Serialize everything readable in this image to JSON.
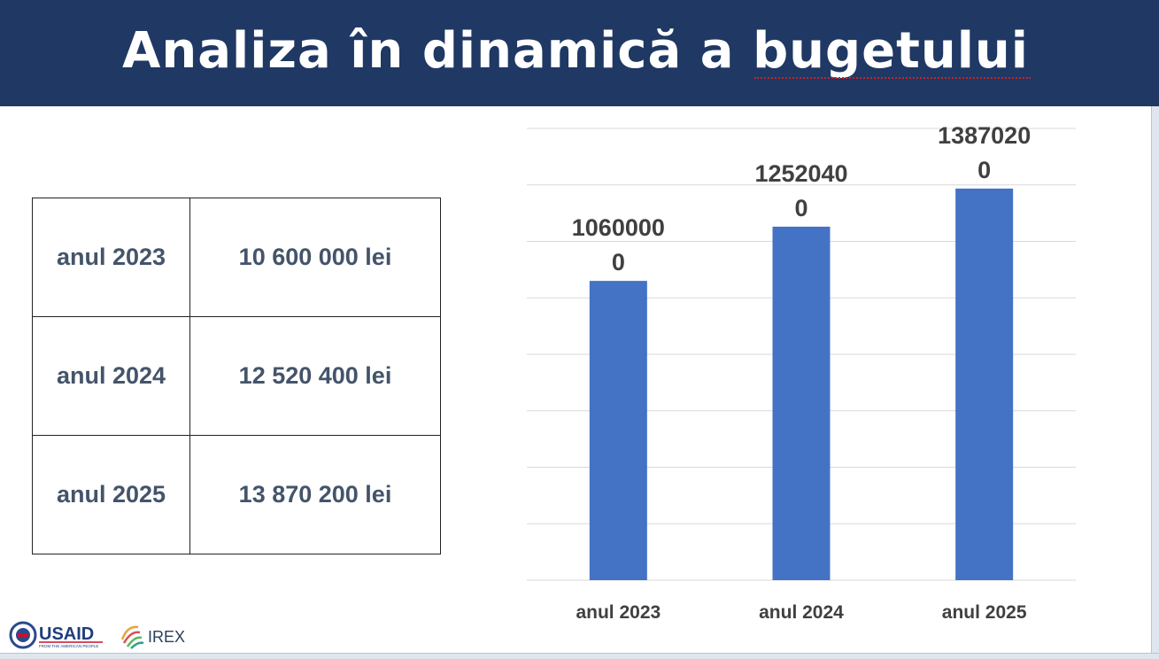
{
  "slide": {
    "title": "Analiza în dinamică a bugetului"
  },
  "table": {
    "rows": [
      {
        "year": "anul 2023",
        "amount": "10 600 000 lei"
      },
      {
        "year": "anul 2024",
        "amount": "12 520 400 lei"
      },
      {
        "year": "anul 2025",
        "amount": "13 870 200 lei"
      }
    ]
  },
  "chart_data": {
    "type": "bar",
    "categories": [
      "anul 2023",
      "anul 2024",
      "anul 2025"
    ],
    "values": [
      10600000,
      12520400,
      13870200
    ],
    "data_labels": [
      [
        "1060000",
        "0"
      ],
      [
        "1252040",
        "0"
      ],
      [
        "1387020",
        "0"
      ]
    ],
    "title": "",
    "xlabel": "",
    "ylabel": "",
    "ylim": [
      0,
      16000000
    ],
    "grid": true,
    "bar_color": "#4472c4",
    "grid_color": "#d9d9d9",
    "label_color": "#404040"
  },
  "logos": {
    "usaid_text": "USAID",
    "usaid_tagline": "FROM THE AMERICAN PEOPLE",
    "irex_text": "IREX"
  },
  "colors": {
    "title_bar": "#1f3864",
    "title_text": "#ffffff",
    "table_text": "#44546a"
  }
}
